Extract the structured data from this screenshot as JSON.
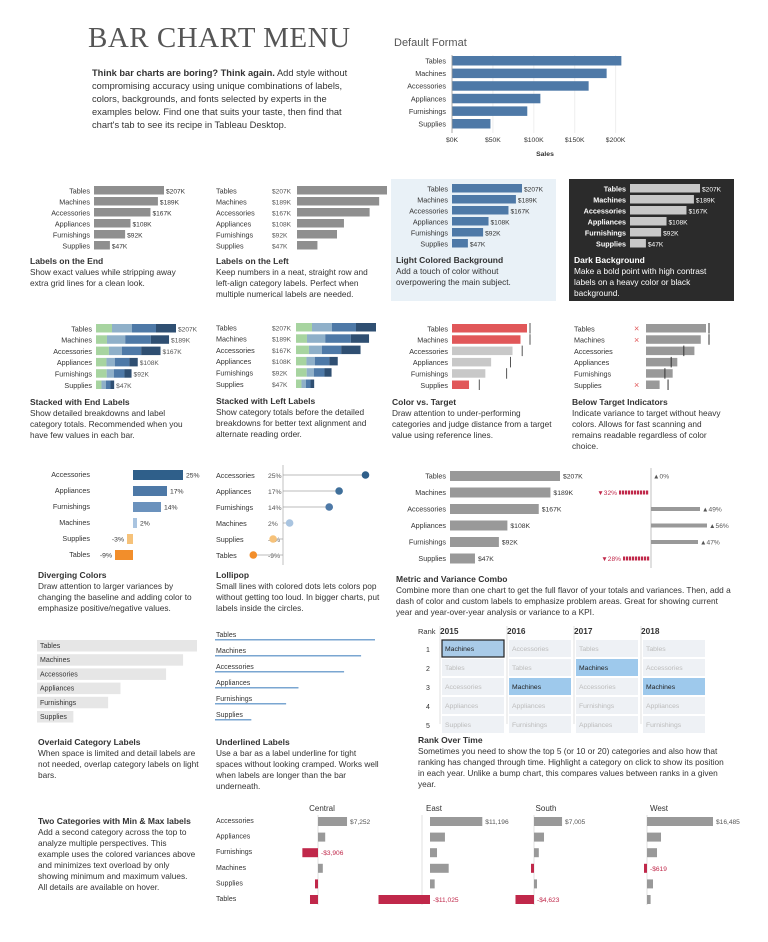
{
  "title": "BAR CHART MENU",
  "intro_bold": "Think bar charts are boring? Think again.",
  "intro_rest": " Add style without compromising accuracy using unique combinations of labels, colors, backgrounds, and fonts selected by experts in the examples below. Find one that suits your taste, then find that chart's tab to see its recipe in Tableau Desktop.",
  "colors": {
    "blue": "#4e79a7",
    "gray": "#9a9a9a",
    "red": "#e15759",
    "dark": "#2b2b2b",
    "light": "#e9f1f7",
    "orange": "#f28e2b",
    "crimson": "#c0284a"
  },
  "chart_data": [
    {
      "type": "bar",
      "title": "Default Format",
      "categories": [
        "Tables",
        "Machines",
        "Accessories",
        "Appliances",
        "Furnishings",
        "Supplies"
      ],
      "values": [
        207,
        189,
        167,
        108,
        92,
        47
      ],
      "xlabel": "Sales",
      "xticks": [
        "$0K",
        "$50K",
        "$100K",
        "$150K",
        "$200K"
      ],
      "xlim": [
        0,
        220
      ]
    },
    {
      "type": "bar",
      "categories": [
        "Tables",
        "Machines",
        "Accessories",
        "Appliances",
        "Furnishings",
        "Supplies"
      ],
      "values": [
        207,
        189,
        167,
        108,
        92,
        47
      ],
      "value_labels": [
        "$207K",
        "$189K",
        "$167K",
        "$108K",
        "$92K",
        "$47K"
      ]
    },
    {
      "type": "bar",
      "categories": [
        "Accessories",
        "Appliances",
        "Furnishings",
        "Machines",
        "Supplies",
        "Tables"
      ],
      "values": [
        25,
        17,
        14,
        2,
        -3,
        -9
      ],
      "value_labels": [
        "25%",
        "17%",
        "14%",
        "2%",
        "-3%",
        "-9%"
      ]
    },
    {
      "type": "bar",
      "categories": [
        "Tables",
        "Machines",
        "Accessories",
        "Appliances",
        "Furnishings",
        "Supplies"
      ],
      "values": [
        207,
        189,
        167,
        108,
        92,
        47
      ],
      "variance": [
        0,
        -32,
        49,
        56,
        47,
        -28
      ],
      "variance_labels": [
        "▲0%",
        "▼32%",
        "▲49%",
        "▲56%",
        "▲47%",
        "▼28%"
      ]
    },
    {
      "type": "table",
      "title": "Rank Over Time",
      "rank_label": "Rank",
      "years": [
        "2015",
        "2016",
        "2017",
        "2018"
      ],
      "ranks": [
        "1",
        "2",
        "3",
        "4",
        "5"
      ],
      "grid": [
        [
          "Machines",
          "Accessories",
          "Tables",
          "Tables"
        ],
        [
          "Tables",
          "Tables",
          "Machines",
          "Accessories"
        ],
        [
          "Accessories",
          "Machines",
          "Accessories",
          "Machines"
        ],
        [
          "Appliances",
          "Appliances",
          "Furnishings",
          "Appliances"
        ],
        [
          "Supplies",
          "Furnishings",
          "Appliances",
          "Furnishings"
        ]
      ],
      "highlight": "Machines"
    },
    {
      "type": "bar",
      "regions": [
        "Central",
        "East",
        "South",
        "West"
      ],
      "categories": [
        "Accessories",
        "Appliances",
        "Furnishings",
        "Machines",
        "Supplies",
        "Tables"
      ],
      "values": {
        "Central": [
          7252,
          1800,
          -3906,
          1200,
          -300,
          -2000
        ],
        "East": [
          11196,
          3200,
          1500,
          4000,
          1000,
          -11025
        ],
        "South": [
          7005,
          2500,
          1200,
          -400,
          500,
          -4623
        ],
        "West": [
          16485,
          3500,
          2500,
          -619,
          1500,
          900
        ]
      },
      "labels": {
        "Central": [
          "$7,252",
          "",
          "-$3,906",
          "",
          "",
          ""
        ],
        "East": [
          "$11,196",
          "",
          "",
          "",
          "",
          "-$11,025"
        ],
        "South": [
          "$7,005",
          "",
          "",
          "",
          "",
          "-$4,623"
        ],
        "West": [
          "$16,485",
          "",
          "",
          "-$619",
          "",
          ""
        ]
      }
    }
  ],
  "captions": [
    {
      "h": "Labels on the End",
      "t": "Show exact values while stripping away extra grid lines for a clean look."
    },
    {
      "h": "Labels on the Left",
      "t": "Keep numbers in a neat, straight row and left-align category labels. Perfect when multiple numerical labels are needed."
    },
    {
      "h": "Light Colored Background",
      "t": "Add a touch of color without overpowering the main subject."
    },
    {
      "h": "Dark Background",
      "t": "Make a bold point with high contrast labels on a heavy color or black background."
    },
    {
      "h": "Stacked with End Labels",
      "t": "Show detailed breakdowns and label category totals. Recommended when you have few values in each bar."
    },
    {
      "h": "Stacked with Left Labels",
      "t": "Show category totals before the detailed breakdowns for better text alignment and alternate reading order."
    },
    {
      "h": "Color vs. Target",
      "t": "Draw attention to under-performing categories and judge distance from a target value using reference lines."
    },
    {
      "h": "Below Target Indicators",
      "t": "Indicate variance to target without heavy colors. Allows for fast scanning and remains readable regardless of color choice."
    },
    {
      "h": "Diverging Colors",
      "t": "Draw attention to larger variances by changing the baseline and adding color to emphasize positive/negative values."
    },
    {
      "h": "Lollipop",
      "t": "Small lines with colored dots lets colors pop without getting too loud. In bigger charts, put labels inside the circles."
    },
    {
      "h": "Metric and Variance Combo",
      "t": "Combine more than one chart to get the full flavor of your totals and variances. Then, add a dash of color and custom labels to emphasize problem areas. Great for showing current year and year-over-year analysis or variance to a KPI."
    },
    {
      "h": "Overlaid Category Labels",
      "t": "When space is limited and detail labels are not needed, overlap category labels on light bars."
    },
    {
      "h": "Underlined Labels",
      "t": "Use a bar as a label underline for tight spaces without looking cramped. Works well when labels are longer than the bar underneath."
    },
    {
      "h": "Rank Over Time",
      "t": "Sometimes you need to show the top 5 (or 10 or 20) categories and also how that ranking has changed through time. Highlight a category on click to show its position in each year. Unlike a bump chart, this compares values between ranks in a given year."
    },
    {
      "h": "Two Categories with Min & Max labels",
      "t": "Add a second category across the top to analyze multiple perspectives. This example uses the colored variances above and minimizes text overload by only showing minimum and maximum values. All details are available on hover."
    }
  ]
}
